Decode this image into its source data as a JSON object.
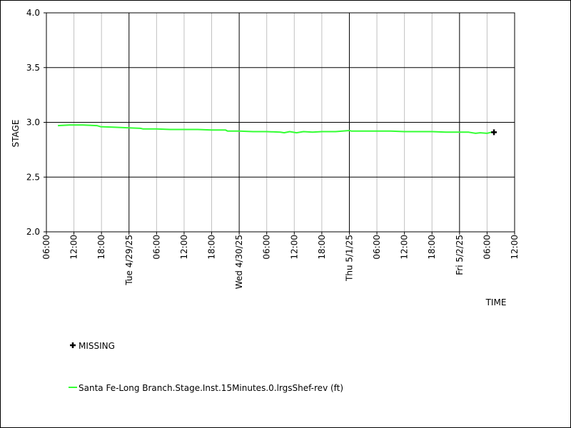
{
  "chart_data": {
    "type": "line",
    "ylabel": "STAGE",
    "xlabel": "TIME",
    "ylim": [
      2.0,
      4.0
    ],
    "y_ticks": [
      "2.0",
      "2.5",
      "3.0",
      "3.5",
      "4.0"
    ],
    "y_tick_values": [
      2.0,
      2.5,
      3.0,
      3.5,
      4.0
    ],
    "x_range_hours": [
      -18,
      84
    ],
    "x_reference_date": "4/28/25",
    "x_ticks": [
      {
        "h": -18,
        "label": "06:00",
        "major": false
      },
      {
        "h": -12,
        "label": "12:00",
        "major": false
      },
      {
        "h": -6,
        "label": "18:00",
        "major": false
      },
      {
        "h": 0,
        "label": "Tue 4/29/25",
        "major": true
      },
      {
        "h": 6,
        "label": "06:00",
        "major": false
      },
      {
        "h": 12,
        "label": "12:00",
        "major": false
      },
      {
        "h": 18,
        "label": "18:00",
        "major": false
      },
      {
        "h": 24,
        "label": "Wed 4/30/25",
        "major": true
      },
      {
        "h": 30,
        "label": "06:00",
        "major": false
      },
      {
        "h": 36,
        "label": "12:00",
        "major": false
      },
      {
        "h": 42,
        "label": "18:00",
        "major": false
      },
      {
        "h": 48,
        "label": "Thu 5/1/25",
        "major": true
      },
      {
        "h": 54,
        "label": "06:00",
        "major": false
      },
      {
        "h": 60,
        "label": "12:00",
        "major": false
      },
      {
        "h": 66,
        "label": "18:00",
        "major": false
      },
      {
        "h": 72,
        "label": "Fri 5/2/25",
        "major": true
      },
      {
        "h": 78,
        "label": "06:00",
        "major": false
      },
      {
        "h": 84,
        "label": "12:00",
        "major": false
      }
    ],
    "series": [
      {
        "name": "Santa Fe-Long Branch.Stage.Inst.15Minutes.0.lrgsShef-rev (ft)",
        "color": "#33ff33",
        "x": [
          -15.5,
          -13,
          -10,
          -7,
          -6.2,
          -3,
          0,
          2.5,
          3,
          6,
          9,
          12,
          15,
          18,
          21,
          21.5,
          24,
          27,
          30,
          33,
          33.8,
          35,
          36.5,
          38,
          40,
          42,
          45,
          46.5,
          48,
          48.5,
          51,
          54,
          57,
          60,
          63,
          66,
          69,
          72,
          74,
          75.5,
          76.5,
          78,
          79
        ],
        "y": [
          2.97,
          2.975,
          2.975,
          2.97,
          2.96,
          2.955,
          2.95,
          2.945,
          2.94,
          2.94,
          2.935,
          2.935,
          2.935,
          2.93,
          2.93,
          2.92,
          2.92,
          2.915,
          2.915,
          2.91,
          2.905,
          2.915,
          2.905,
          2.915,
          2.91,
          2.915,
          2.915,
          2.92,
          2.925,
          2.92,
          2.92,
          2.92,
          2.92,
          2.915,
          2.915,
          2.915,
          2.91,
          2.91,
          2.91,
          2.9,
          2.905,
          2.9,
          2.91
        ]
      }
    ],
    "missing_points": [
      {
        "x": 79.5,
        "y": 2.91
      }
    ],
    "grid": true,
    "legend": [
      {
        "symbol": "plus",
        "label": "MISSING"
      },
      {
        "symbol": "line",
        "color": "#33ff33",
        "label": "Santa Fe-Long Branch.Stage.Inst.15Minutes.0.lrgsShef-rev (ft)"
      }
    ],
    "legend_placement": "bottom-left"
  }
}
